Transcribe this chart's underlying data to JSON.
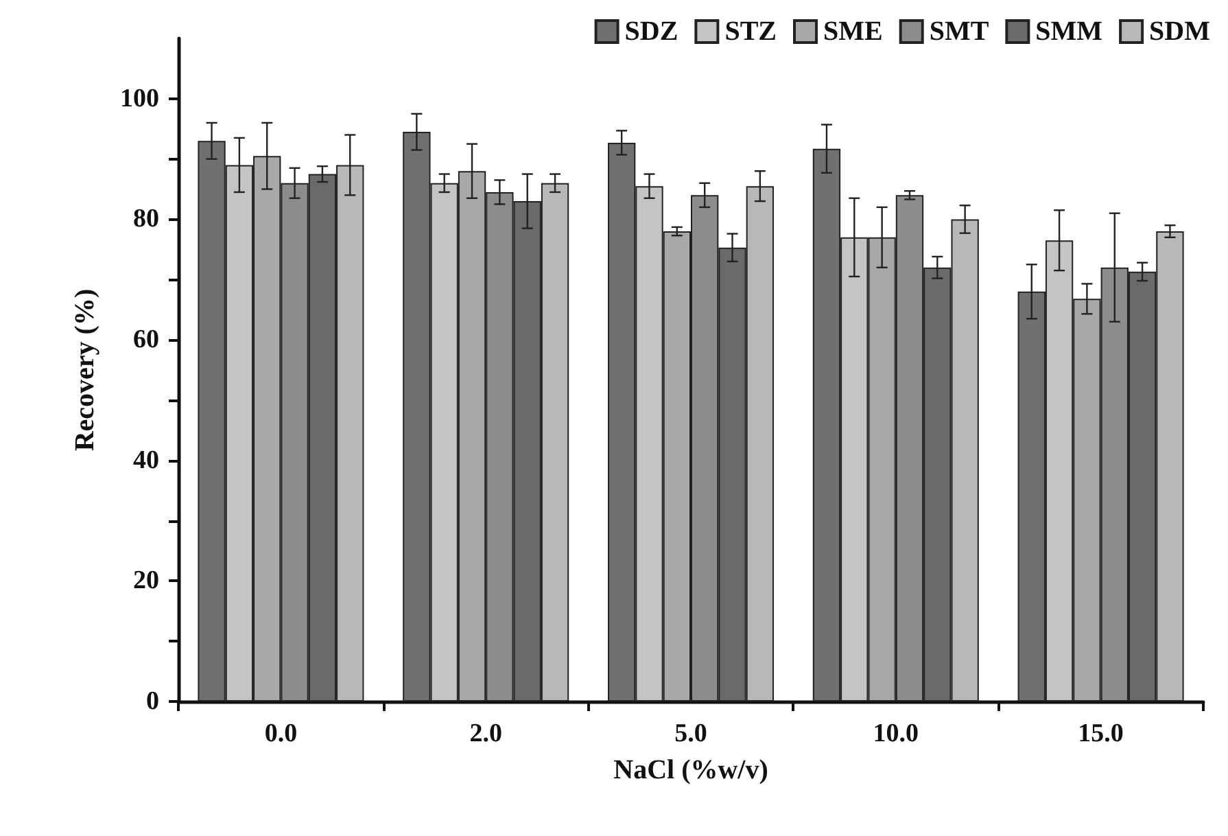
{
  "chart_data": {
    "type": "bar",
    "xlabel": "NaCl (%w/v)",
    "ylabel": "Recovery (%)",
    "categories": [
      "0.0",
      "2.0",
      "5.0",
      "10.0",
      "15.0"
    ],
    "ylim": [
      0,
      110
    ],
    "yticks": [
      0,
      {
        "value": 10,
        "label": null
      },
      20,
      {
        "value": 30,
        "label": null
      },
      40,
      {
        "value": 50,
        "label": null
      },
      60,
      {
        "value": 70,
        "label": null
      },
      80,
      {
        "value": 90,
        "label": null
      },
      100
    ],
    "grid": false,
    "legend": "top right",
    "series": [
      {
        "name": "SDZ",
        "color": "#707070",
        "values": [
          93,
          94.5,
          92.7,
          91.7,
          68
        ],
        "errors": [
          3,
          3,
          2,
          4,
          4.5
        ]
      },
      {
        "name": "STZ",
        "color": "#c4c4c4",
        "values": [
          89,
          86,
          85.5,
          77,
          76.5
        ],
        "errors": [
          4.5,
          1.5,
          2,
          6.5,
          5
        ]
      },
      {
        "name": "SME",
        "color": "#a8a8a8",
        "values": [
          90.5,
          88,
          78,
          77,
          66.8
        ],
        "errors": [
          5.5,
          4.5,
          0.7,
          5,
          2.5
        ]
      },
      {
        "name": "SMT",
        "color": "#8c8c8c",
        "values": [
          86,
          84.5,
          84,
          84,
          72
        ],
        "errors": [
          2.5,
          2,
          2,
          0.7,
          9
        ]
      },
      {
        "name": "SMM",
        "color": "#6a6a6a",
        "values": [
          87.5,
          83,
          75.3,
          72,
          71.3
        ],
        "errors": [
          1.3,
          4.5,
          2.3,
          1.8,
          1.5
        ]
      },
      {
        "name": "SDM",
        "color": "#b8b8b8",
        "values": [
          89,
          86,
          85.5,
          80,
          78
        ],
        "errors": [
          5,
          1.5,
          2.5,
          2.3,
          1
        ]
      }
    ]
  }
}
